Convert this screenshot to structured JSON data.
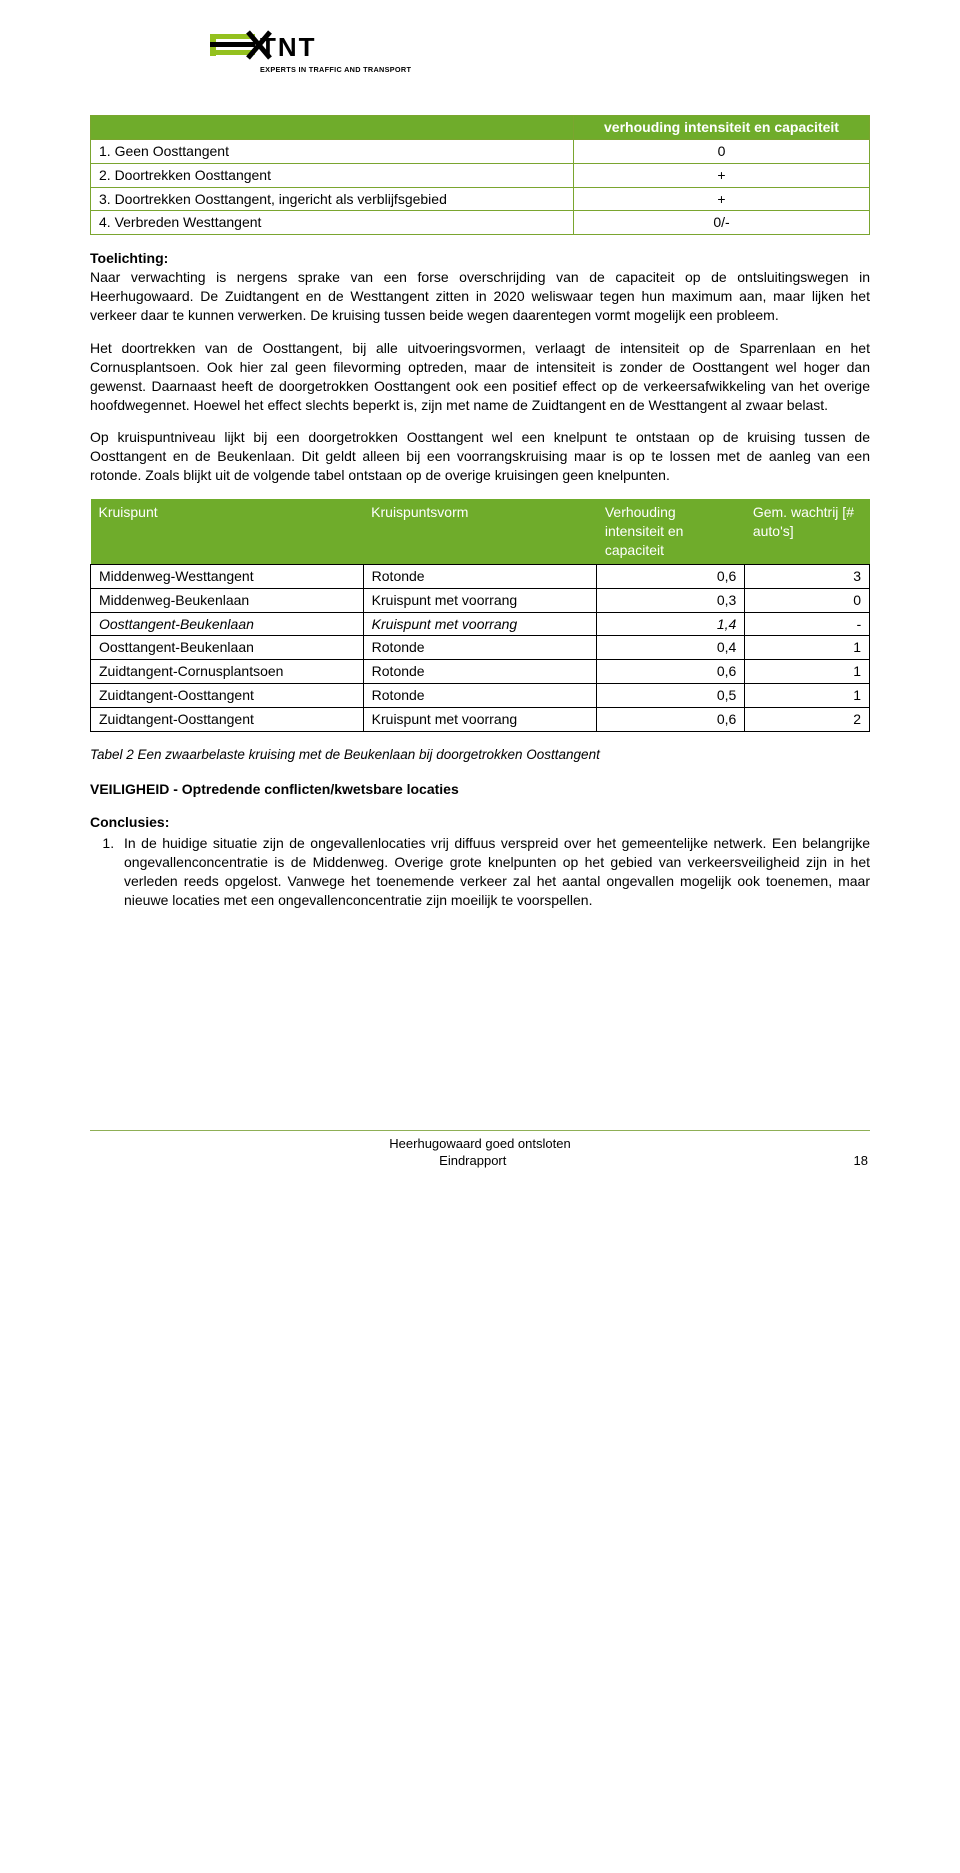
{
  "logo": {
    "brand_green": "#94c11f",
    "brand_black": "#000000",
    "tagline": "EXPERTS IN TRAFFIC AND TRANSPORT"
  },
  "table1": {
    "header_bg": "#6fac2b",
    "border_color": "#7aa52f",
    "header": [
      "",
      "verhouding intensiteit en capaciteit"
    ],
    "rows": [
      [
        "1.  Geen Oosttangent",
        "0"
      ],
      [
        "2.  Doortrekken Oosttangent",
        "+"
      ],
      [
        "3.  Doortrekken Oosttangent, ingericht als verblijfsgebied",
        "+"
      ],
      [
        "4.  Verbreden Westtangent",
        "0/-"
      ]
    ]
  },
  "toelichting_label": "Toelichting:",
  "para1": "Naar verwachting is nergens sprake van een forse overschrijding van de capaciteit op de ontsluitingswegen in Heerhugowaard. De Zuidtangent en de Westtangent zitten in 2020 weliswaar tegen hun maximum aan, maar lijken het verkeer daar te kunnen verwerken. De kruising tussen beide wegen daarentegen vormt mogelijk een probleem.",
  "para2": "Het doortrekken van de Oosttangent, bij alle uitvoeringsvormen, verlaagt de intensiteit op de Sparrenlaan en het Cornusplantsoen. Ook hier zal geen filevorming optreden, maar de intensiteit is zonder de Oosttangent wel hoger dan gewenst. Daarnaast heeft de doorgetrokken Oosttangent ook een positief effect op de verkeersafwikkeling van het overige hoofdwegennet. Hoewel het effect slechts beperkt is, zijn met name de Zuidtangent en de Westtangent al zwaar belast.",
  "para3": "Op kruispuntniveau lijkt bij een doorgetrokken Oosttangent wel een knelpunt te ontstaan op de kruising tussen de Oosttangent en de Beukenlaan. Dit geldt alleen bij een voorrangskruising maar is op te lossen met de aanleg van een rotonde. Zoals blijkt uit de volgende tabel ontstaan op de overige kruisingen geen knelpunten.",
  "table2": {
    "header_bg": "#6fac2b",
    "headers": [
      "Kruispunt",
      "Kruispuntsvorm",
      "Verhouding intensiteit en capaciteit",
      "Gem. wachtrij [# auto's]"
    ],
    "col_widths": [
      "35%",
      "30%",
      "19%",
      "16%"
    ],
    "rows": [
      {
        "c": [
          "Middenweg-Westtangent",
          "Rotonde",
          "0,6",
          "3"
        ],
        "italic": false
      },
      {
        "c": [
          "Middenweg-Beukenlaan",
          "Kruispunt met voorrang",
          "0,3",
          "0"
        ],
        "italic": false
      },
      {
        "c": [
          "Oosttangent-Beukenlaan",
          "Kruispunt met voorrang",
          "1,4",
          "-"
        ],
        "italic": true
      },
      {
        "c": [
          "Oosttangent-Beukenlaan",
          "Rotonde",
          "0,4",
          "1"
        ],
        "italic": false
      },
      {
        "c": [
          "Zuidtangent-Cornusplantsoen",
          "Rotonde",
          "0,6",
          "1"
        ],
        "italic": false
      },
      {
        "c": [
          "Zuidtangent-Oosttangent",
          "Rotonde",
          "0,5",
          "1"
        ],
        "italic": false
      },
      {
        "c": [
          "Zuidtangent-Oosttangent",
          "Kruispunt met voorrang",
          "0,6",
          "2"
        ],
        "italic": false
      }
    ]
  },
  "caption": "Tabel 2 Een zwaarbelaste kruising met de Beukenlaan bij doorgetrokken Oosttangent",
  "section_head": "VEILIGHEID - Optredende conflicten/kwetsbare locaties",
  "conclusies_label": "Conclusies:",
  "conclusies": [
    "In de huidige situatie zijn de ongevallenlocaties vrij diffuus verspreid over het gemeentelijke netwerk. Een belangrijke ongevallenconcentratie is de Middenweg. Overige grote knelpunten op het gebied van verkeersveiligheid zijn in het verleden reeds opgelost. Vanwege het toenemende verkeer zal het aantal ongevallen mogelijk ook toenemen, maar nieuwe locaties met een ongevallenconcentratie zijn moeilijk te voorspellen."
  ],
  "footer": {
    "line1": "Heerhugowaard goed ontsloten",
    "line2_left": "Eindrapport",
    "page_number": "18",
    "rule_color": "#8faf56"
  }
}
